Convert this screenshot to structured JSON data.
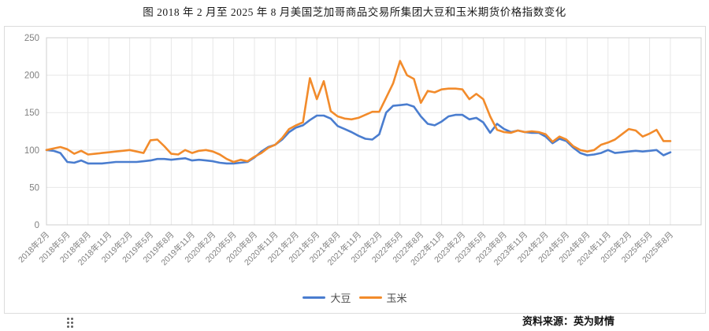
{
  "page": {
    "title": "图  2018 年 2 月至 2025 年 8 月美国芝加哥商品交易所集团大豆和玉米期货价格指数变化",
    "source": "资料来源：英为财情"
  },
  "chart_data": {
    "type": "line",
    "title": "2018年2月至2025年8月美国芝加哥商品交易所集团大豆和玉米期货价格指数变化",
    "x_range": {
      "start": "2018-02",
      "end": "2025-08",
      "step": "1 month",
      "points": 91
    },
    "x_tick_labels": [
      "2018年2月",
      "2018年5月",
      "2018年8月",
      "2018年11月",
      "2019年2月",
      "2019年5月",
      "2019年8月",
      "2019年11月",
      "2020年2月",
      "2020年5月",
      "2020年8月",
      "2020年11月",
      "2021年2月",
      "2021年5月",
      "2021年8月",
      "2021年11月",
      "2022年2月",
      "2022年5月",
      "2022年8月",
      "2022年11月",
      "2023年2月",
      "2023年5月",
      "2023年8月",
      "2023年11月",
      "2024年2月",
      "2024年5月",
      "2024年8月",
      "2024年11月",
      "2025年2月",
      "2025年5月",
      "2025年8月"
    ],
    "months_per_tick": 3,
    "y_ticks": [
      0,
      50,
      100,
      150,
      200,
      250
    ],
    "ylim": [
      0,
      250
    ],
    "grid": true,
    "legend_position": "bottom",
    "axis_label_color": "#808080",
    "grid_color": "#e7e7e7",
    "border_color": "#cfcfcf",
    "series": [
      {
        "id": "soybean",
        "name": "大豆",
        "color": "#4a7dcf",
        "values": [
          100,
          99,
          96,
          84,
          83,
          86,
          82,
          82,
          82,
          83,
          84,
          84,
          84,
          84,
          85,
          86,
          88,
          88,
          87,
          88,
          89,
          86,
          87,
          86,
          85,
          83,
          82,
          82,
          83,
          84,
          90,
          98,
          104,
          107,
          114,
          124,
          130,
          133,
          140,
          146,
          146,
          142,
          132,
          128,
          124,
          119,
          115,
          114,
          121,
          150,
          159,
          160,
          161,
          158,
          145,
          135,
          133,
          138,
          145,
          147,
          147,
          141,
          143,
          137,
          123,
          135,
          128,
          124,
          126,
          124,
          123,
          123,
          118,
          109,
          115,
          112,
          103,
          96,
          93,
          94,
          96,
          100,
          96,
          97,
          98,
          99,
          98,
          99,
          100,
          93,
          97
        ]
      },
      {
        "id": "corn",
        "name": "玉米",
        "color": "#f28b2b",
        "values": [
          100,
          102,
          104,
          101,
          95,
          99,
          94,
          95,
          96,
          97,
          98,
          99,
          100,
          98,
          96,
          113,
          114,
          105,
          95,
          94,
          100,
          96,
          99,
          100,
          98,
          94,
          88,
          84,
          87,
          85,
          91,
          96,
          103,
          107,
          116,
          128,
          133,
          137,
          196,
          168,
          192,
          152,
          145,
          142,
          141,
          143,
          147,
          151,
          151,
          170,
          189,
          219,
          200,
          195,
          163,
          179,
          177,
          181,
          182,
          182,
          181,
          168,
          175,
          168,
          145,
          127,
          124,
          123,
          126,
          124,
          125,
          124,
          121,
          111,
          118,
          114,
          105,
          100,
          98,
          100,
          107,
          110,
          114,
          121,
          128,
          126,
          118,
          122,
          127,
          112,
          112
        ]
      }
    ]
  }
}
